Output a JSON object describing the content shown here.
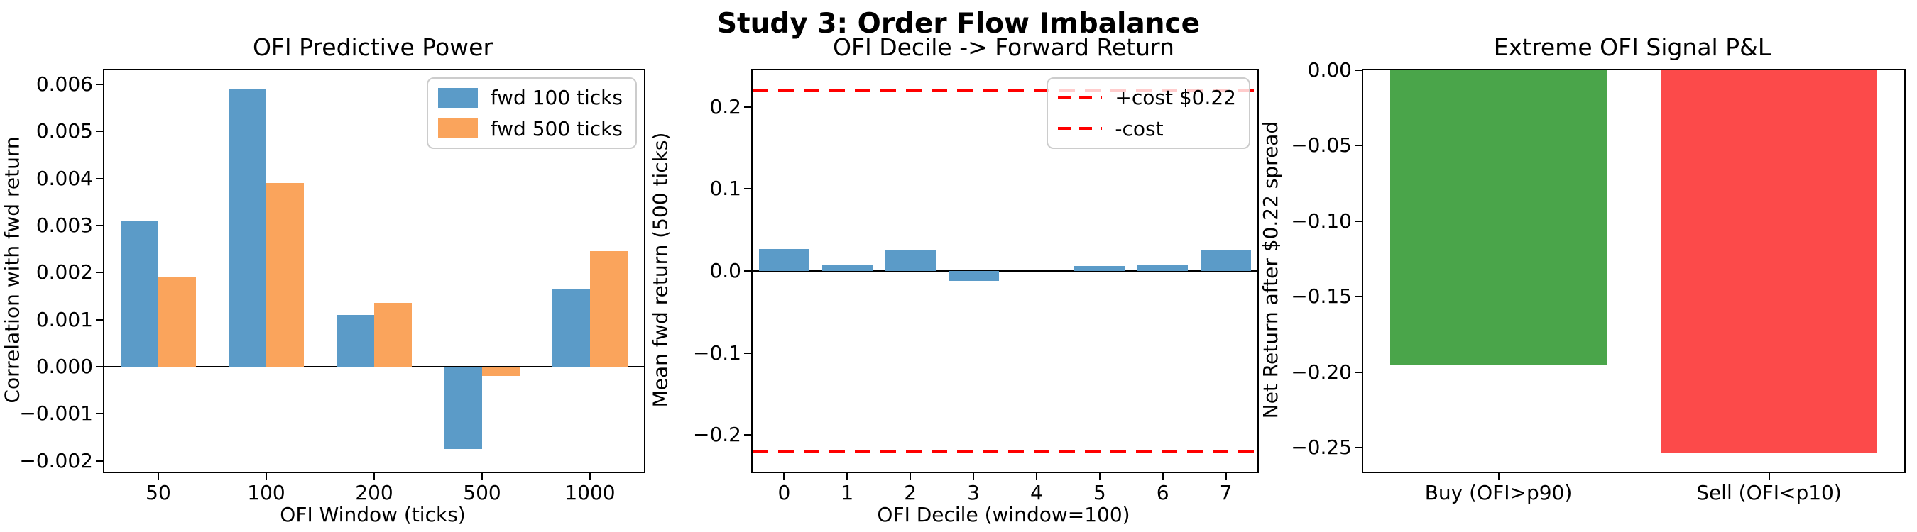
{
  "figure": {
    "suptitle": "Study 3: Order Flow Imbalance"
  },
  "colors": {
    "blue": "#5b9bc8",
    "orange": "#faa45c",
    "green": "#4aa54a",
    "red_bar": "#fc4a4a",
    "cost_line_red": "#ff0000"
  },
  "chart_data": [
    {
      "type": "bar",
      "title": "OFI Predictive Power",
      "xlabel": "OFI Window (ticks)",
      "ylabel": "Correlation with fwd return",
      "categories": [
        "50",
        "100",
        "200",
        "500",
        "1000"
      ],
      "series": [
        {
          "name": "fwd 100 ticks",
          "color": "#5b9bc8",
          "values": [
            0.0031,
            0.0059,
            0.0011,
            -0.00175,
            0.00165
          ]
        },
        {
          "name": "fwd 500 ticks",
          "color": "#faa45c",
          "values": [
            0.0019,
            0.0039,
            0.00135,
            -0.0002,
            0.00245
          ]
        }
      ],
      "ylim": [
        -0.00223,
        0.0063
      ],
      "yticks": [
        {
          "v": 0.006,
          "label": "0.006"
        },
        {
          "v": 0.005,
          "label": "0.005"
        },
        {
          "v": 0.004,
          "label": "0.004"
        },
        {
          "v": 0.003,
          "label": "0.003"
        },
        {
          "v": 0.002,
          "label": "0.002"
        },
        {
          "v": 0.001,
          "label": "0.001"
        },
        {
          "v": 0.0,
          "label": "0.000"
        },
        {
          "v": -0.001,
          "label": "−0.001"
        },
        {
          "v": -0.002,
          "label": "−0.002"
        }
      ],
      "zero_line": true,
      "grid": false,
      "legend": {
        "position": "top-right",
        "items": [
          {
            "label": "fwd 100 ticks",
            "swatch": "patch",
            "color": "#5b9bc8"
          },
          {
            "label": "fwd 500 ticks",
            "swatch": "patch",
            "color": "#faa45c"
          }
        ]
      }
    },
    {
      "type": "bar",
      "title": "OFI Decile -> Forward Return",
      "xlabel": "OFI Decile (window=100)",
      "ylabel": "Mean fwd return (500 ticks)",
      "categories": [
        "0",
        "1",
        "2",
        "3",
        "4",
        "5",
        "6",
        "7"
      ],
      "values": [
        0.027,
        0.007,
        0.026,
        -0.012,
        0.0,
        0.006,
        0.008,
        0.025
      ],
      "bar_color": "#5b9bc8",
      "ylim": [
        -0.245,
        0.245
      ],
      "yticks": [
        {
          "v": 0.2,
          "label": "0.2"
        },
        {
          "v": 0.1,
          "label": "0.1"
        },
        {
          "v": 0.0,
          "label": "0.0"
        },
        {
          "v": -0.1,
          "label": "−0.1"
        },
        {
          "v": -0.2,
          "label": "−0.2"
        }
      ],
      "zero_line": true,
      "grid": false,
      "hlines": [
        {
          "v": 0.22,
          "label": "+cost $0.22",
          "color": "#ff0000",
          "style": "dashed"
        },
        {
          "v": -0.22,
          "label": "-cost",
          "color": "#ff0000",
          "style": "dashed"
        }
      ],
      "legend": {
        "position": "top-right",
        "items": [
          {
            "label": "+cost $0.22",
            "swatch": "dash",
            "color": "#ff0000"
          },
          {
            "label": "-cost",
            "swatch": "dash",
            "color": "#ff0000"
          }
        ]
      }
    },
    {
      "type": "bar",
      "title": "Extreme OFI Signal P&L",
      "xlabel": "",
      "ylabel": "Net Return after $0.22 spread",
      "categories": [
        "Buy (OFI>p90)",
        "Sell (OFI<p10)"
      ],
      "values": [
        -0.195,
        -0.254
      ],
      "bar_colors": [
        "#4aa54a",
        "#fc4a4a"
      ],
      "ylim": [
        -0.266,
        0.0
      ],
      "yticks": [
        {
          "v": 0.0,
          "label": "0.00"
        },
        {
          "v": -0.05,
          "label": "−0.05"
        },
        {
          "v": -0.1,
          "label": "−0.10"
        },
        {
          "v": -0.15,
          "label": "−0.15"
        },
        {
          "v": -0.2,
          "label": "−0.20"
        },
        {
          "v": -0.25,
          "label": "−0.25"
        }
      ],
      "zero_line": false,
      "grid": false
    }
  ]
}
